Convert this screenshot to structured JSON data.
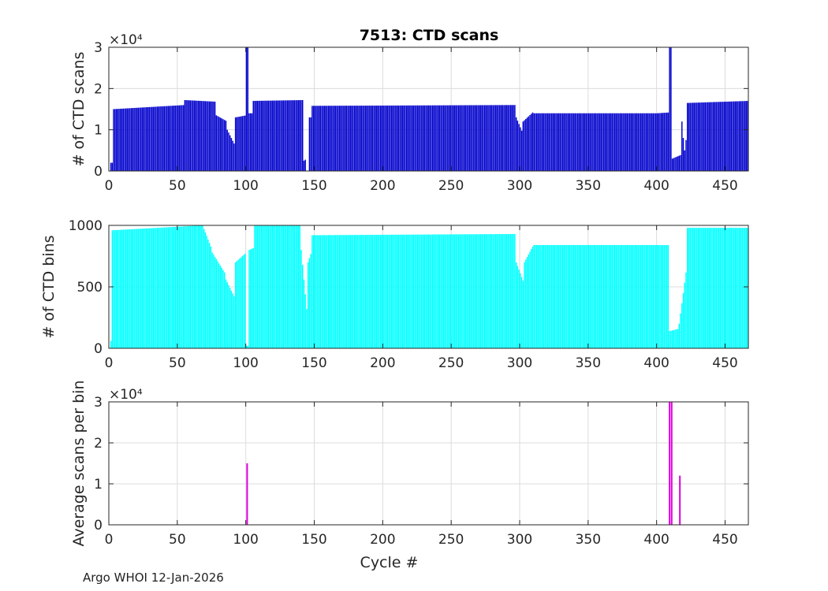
{
  "figure_title": "7513: CTD scans",
  "footer": "Argo WHOI 12-Jan-2026",
  "chart_data": [
    {
      "type": "bar",
      "title": "7513: CTD scans",
      "xlabel": "",
      "ylabel": "# of CTD scans",
      "exponent_label": "×10⁴",
      "x_ticks": [
        0,
        50,
        100,
        150,
        200,
        250,
        300,
        350,
        400,
        450
      ],
      "y_ticks": [
        0,
        1,
        2,
        3
      ],
      "xlim": [
        0,
        467
      ],
      "ylim": [
        0,
        3
      ],
      "color": "#0000cc",
      "grid": true,
      "segments": [
        {
          "x": [
            1,
            3
          ],
          "values": [
            0.2,
            0.2
          ]
        },
        {
          "x": [
            3,
            55
          ],
          "values": [
            1.5,
            1.6
          ]
        },
        {
          "x": [
            55,
            78
          ],
          "values": [
            1.72,
            1.68
          ]
        },
        {
          "x": [
            78,
            86
          ],
          "values": [
            1.35,
            1.2
          ]
        },
        {
          "x": [
            86,
            92
          ],
          "values": [
            1.0,
            0.6
          ]
        },
        {
          "x": [
            92,
            100
          ],
          "values": [
            1.3,
            1.35
          ]
        },
        {
          "x": [
            100,
            102
          ],
          "values": [
            3.0,
            3.0
          ]
        },
        {
          "x": [
            102,
            105
          ],
          "values": [
            1.4,
            1.4
          ]
        },
        {
          "x": [
            105,
            142
          ],
          "values": [
            1.7,
            1.72
          ]
        },
        {
          "x": [
            142,
            144
          ],
          "values": [
            0.25,
            0.3
          ]
        },
        {
          "x": [
            146,
            148
          ],
          "values": [
            1.3,
            1.3
          ]
        },
        {
          "x": [
            148,
            297
          ],
          "values": [
            1.58,
            1.6
          ]
        },
        {
          "x": [
            297,
            302
          ],
          "values": [
            1.3,
            0.9
          ]
        },
        {
          "x": [
            302,
            310
          ],
          "values": [
            1.2,
            1.45
          ]
        },
        {
          "x": [
            310,
            400
          ],
          "values": [
            1.4,
            1.4
          ]
        },
        {
          "x": [
            400,
            409
          ],
          "values": [
            1.4,
            1.42
          ]
        },
        {
          "x": [
            409,
            411
          ],
          "values": [
            3.0,
            3.0
          ]
        },
        {
          "x": [
            411,
            418
          ],
          "values": [
            0.3,
            0.4
          ]
        },
        {
          "x": [
            418,
            420
          ],
          "values": [
            1.2,
            0.4
          ]
        },
        {
          "x": [
            420,
            422
          ],
          "values": [
            0.5,
            1.0
          ]
        },
        {
          "x": [
            422,
            467
          ],
          "values": [
            1.65,
            1.7
          ]
        }
      ]
    },
    {
      "type": "bar",
      "title": "",
      "xlabel": "",
      "ylabel": "# of CTD bins",
      "x_ticks": [
        0,
        50,
        100,
        150,
        200,
        250,
        300,
        350,
        400,
        450
      ],
      "y_ticks": [
        0,
        500,
        1000
      ],
      "xlim": [
        0,
        467
      ],
      "ylim": [
        0,
        1000
      ],
      "color": "#00ffff",
      "grid": true,
      "segments": [
        {
          "x": [
            1,
            2
          ],
          "values": [
            60,
            60
          ]
        },
        {
          "x": [
            2,
            68
          ],
          "values": [
            960,
            1000
          ]
        },
        {
          "x": [
            68,
            75
          ],
          "values": [
            1000,
            800
          ]
        },
        {
          "x": [
            75,
            85
          ],
          "values": [
            780,
            600
          ]
        },
        {
          "x": [
            85,
            92
          ],
          "values": [
            560,
            400
          ]
        },
        {
          "x": [
            92,
            100
          ],
          "values": [
            700,
            780
          ]
        },
        {
          "x": [
            100,
            102
          ],
          "values": [
            20,
            20
          ]
        },
        {
          "x": [
            102,
            106
          ],
          "values": [
            800,
            820
          ]
        },
        {
          "x": [
            106,
            140
          ],
          "values": [
            1000,
            1000
          ]
        },
        {
          "x": [
            140,
            145
          ],
          "values": [
            800,
            200
          ]
        },
        {
          "x": [
            145,
            148
          ],
          "values": [
            700,
            800
          ]
        },
        {
          "x": [
            148,
            297
          ],
          "values": [
            920,
            930
          ]
        },
        {
          "x": [
            297,
            303
          ],
          "values": [
            700,
            520
          ]
        },
        {
          "x": [
            303,
            310
          ],
          "values": [
            700,
            850
          ]
        },
        {
          "x": [
            310,
            409
          ],
          "values": [
            840,
            840
          ]
        },
        {
          "x": [
            409,
            416
          ],
          "values": [
            140,
            160
          ]
        },
        {
          "x": [
            416,
            422
          ],
          "values": [
            200,
            700
          ]
        },
        {
          "x": [
            422,
            467
          ],
          "values": [
            980,
            980
          ]
        }
      ]
    },
    {
      "type": "bar",
      "title": "",
      "xlabel": "Cycle #",
      "ylabel": "Average scans per bin",
      "exponent_label": "×10⁴",
      "x_ticks": [
        0,
        50,
        100,
        150,
        200,
        250,
        300,
        350,
        400,
        450
      ],
      "y_ticks": [
        0,
        1,
        2,
        3
      ],
      "xlim": [
        0,
        467
      ],
      "ylim": [
        0,
        3
      ],
      "color": "#dd00dd",
      "grid": true,
      "spikes": [
        {
          "x": 101,
          "value": 1.5
        },
        {
          "x": 409.5,
          "value": 3.0
        },
        {
          "x": 411,
          "value": 3.0
        },
        {
          "x": 417,
          "value": 1.2
        }
      ]
    }
  ]
}
